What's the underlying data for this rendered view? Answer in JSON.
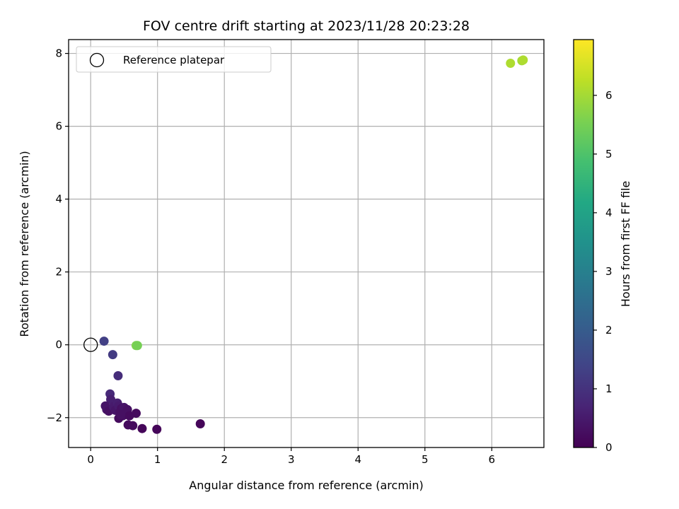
{
  "chart_data": {
    "type": "scatter",
    "title": "FOV centre drift starting at 2023/11/28 20:23:28",
    "xlabel": "Angular distance from reference (arcmin)",
    "ylabel": "Rotation from reference (arcmin)",
    "xlim": [
      -0.33,
      6.78
    ],
    "ylim": [
      -2.82,
      8.38
    ],
    "xticks": [
      0,
      1,
      2,
      3,
      4,
      5,
      6
    ],
    "yticks": [
      -2,
      0,
      2,
      4,
      6,
      8
    ],
    "grid": true,
    "legend": {
      "placement": "top-left",
      "entries": [
        "Reference platepar"
      ]
    },
    "reference_point": {
      "x": 0,
      "y": 0
    },
    "colorbar": {
      "label": "Hours from first FF file",
      "colormap": "viridis",
      "range": [
        0,
        6.95
      ],
      "ticks": [
        0,
        1,
        2,
        3,
        4,
        5,
        6
      ]
    },
    "points": [
      {
        "x": 0.2,
        "y": 0.1,
        "t": 1.3
      },
      {
        "x": 0.33,
        "y": -0.27,
        "t": 1.2
      },
      {
        "x": 0.41,
        "y": -0.85,
        "t": 0.9
      },
      {
        "x": 0.29,
        "y": -1.35,
        "t": 0.8
      },
      {
        "x": 0.3,
        "y": -1.5,
        "t": 0.6
      },
      {
        "x": 0.22,
        "y": -1.68,
        "t": 0.4
      },
      {
        "x": 0.24,
        "y": -1.78,
        "t": 0.4
      },
      {
        "x": 0.27,
        "y": -1.82,
        "t": 0.3
      },
      {
        "x": 0.34,
        "y": -1.7,
        "t": 0.5
      },
      {
        "x": 0.37,
        "y": -1.8,
        "t": 0.4
      },
      {
        "x": 0.4,
        "y": -1.6,
        "t": 0.6
      },
      {
        "x": 0.42,
        "y": -1.68,
        "t": 0.5
      },
      {
        "x": 0.44,
        "y": -1.85,
        "t": 0.3
      },
      {
        "x": 0.46,
        "y": -1.75,
        "t": 0.3
      },
      {
        "x": 0.48,
        "y": -1.95,
        "t": 0.3
      },
      {
        "x": 0.5,
        "y": -1.72,
        "t": 0.4
      },
      {
        "x": 0.52,
        "y": -1.88,
        "t": 0.3
      },
      {
        "x": 0.55,
        "y": -1.78,
        "t": 0.3
      },
      {
        "x": 0.58,
        "y": -1.95,
        "t": 0.2
      },
      {
        "x": 0.42,
        "y": -2.02,
        "t": 0.2
      },
      {
        "x": 0.45,
        "y": -1.92,
        "t": 0.3
      },
      {
        "x": 0.56,
        "y": -2.2,
        "t": 0.2
      },
      {
        "x": 0.63,
        "y": -2.22,
        "t": 0.2
      },
      {
        "x": 0.68,
        "y": -1.88,
        "t": 0.2
      },
      {
        "x": 0.77,
        "y": -2.3,
        "t": 0.1
      },
      {
        "x": 0.99,
        "y": -2.32,
        "t": 0.1
      },
      {
        "x": 1.64,
        "y": -2.17,
        "t": 0.1
      },
      {
        "x": 0.68,
        "y": -0.02,
        "t": 5.6
      },
      {
        "x": 0.7,
        "y": -0.02,
        "t": 5.5
      },
      {
        "x": 6.28,
        "y": 7.73,
        "t": 6.1
      },
      {
        "x": 6.45,
        "y": 7.8,
        "t": 6.0
      },
      {
        "x": 6.47,
        "y": 7.82,
        "t": 6.1
      }
    ]
  }
}
